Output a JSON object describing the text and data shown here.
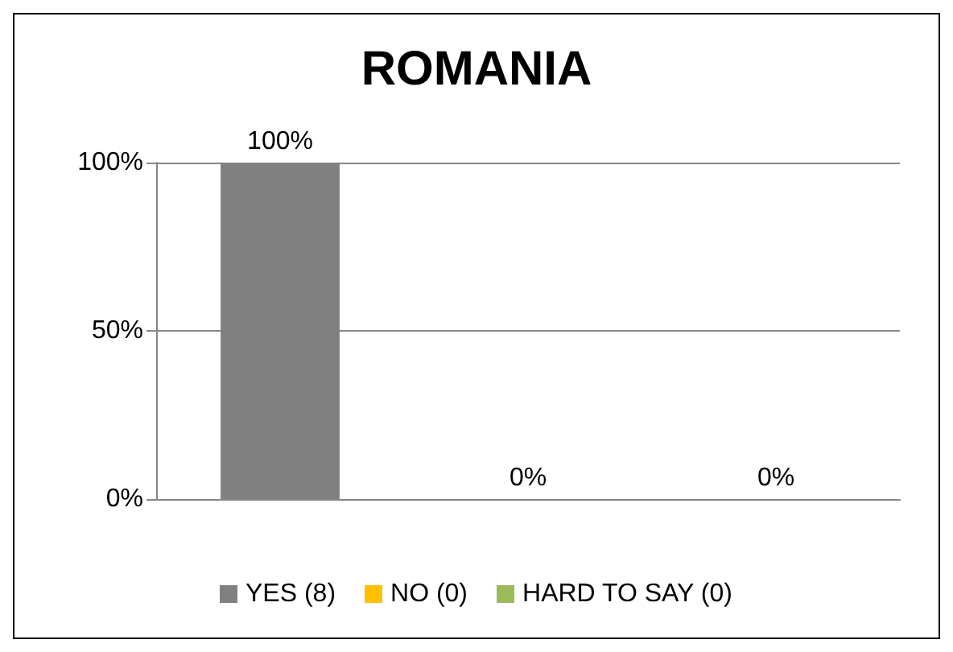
{
  "chart_data": {
    "type": "bar",
    "title": "ROMANIA",
    "categories": [
      null,
      null,
      null
    ],
    "series": [
      {
        "name": "YES (8)",
        "color": "#808080",
        "values": [
          100,
          null,
          null
        ],
        "value_labels": [
          "100%",
          null,
          null
        ]
      },
      {
        "name": "NO (0)",
        "color": "#ffc000",
        "values": [
          null,
          0,
          null
        ],
        "value_labels": [
          null,
          "0%",
          null
        ]
      },
      {
        "name": "HARD TO SAY (0)",
        "color": "#9bbb59",
        "values": [
          null,
          null,
          0
        ],
        "value_labels": [
          null,
          null,
          "0%"
        ]
      }
    ],
    "ylim": [
      0,
      100
    ],
    "yticks": [
      {
        "value": 0,
        "label": "0%"
      },
      {
        "value": 50,
        "label": "50%"
      },
      {
        "value": 100,
        "label": "100%"
      }
    ],
    "grid": "y",
    "legend": "bottom"
  }
}
